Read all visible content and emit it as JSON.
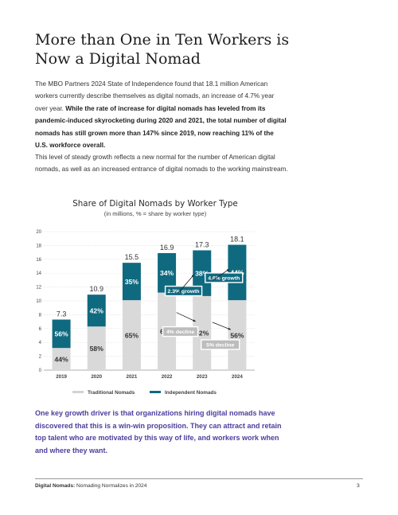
{
  "page": {
    "title_line1": "More than One in Ten Workers is",
    "title_line2": "Now a Digital Nomad",
    "p1_normal": "The MBO Partners 2024 State of Independence found that 18.1 million American workers currently describe themselves as digital nomads, an increase of 4.7% year over year. ",
    "p1_bold": "While the rate of increase for digital nomads has leveled from its pandemic-induced skyrocketing during 2020 and 2021, the total number of digital nomads has still grown more than 147% since 2019, now reaching 11% of the U.S. workforce overall.",
    "p2": "This level of steady growth reflects a new normal for the number of American digital nomads, as well as an increased entrance of digital nomads to the working mainstream.",
    "callout": "One key growth driver is that organizations hiring digital nomads have discovered that this is a win-win proposition. They can attract and retain top talent who are motivated by this way of life, and workers work when and where they want.",
    "footer_bold": "Digital Nomads:",
    "footer_rest": " Nomading Normalizes in 2024",
    "page_number": "3"
  },
  "chart_data": {
    "type": "bar",
    "stacked": true,
    "title": "Share of Digital Nomads by Worker Type",
    "subtitle": "(in millions, % = share by worker type)",
    "categories": [
      "2019",
      "2020",
      "2021",
      "2022",
      "2023",
      "2024"
    ],
    "totals": [
      "7.3",
      "10.9",
      "15.5",
      "16.9",
      "17.3",
      "18.1"
    ],
    "total_values": [
      7.3,
      10.9,
      15.5,
      16.9,
      17.3,
      18.1
    ],
    "series": [
      {
        "name": "Traditional Nomads",
        "color": "#d9d9d9",
        "share_labels": [
          "44%",
          "58%",
          "65%",
          "66%",
          "62%",
          "56%"
        ],
        "values": [
          3.2,
          6.3,
          10.1,
          11.2,
          10.7,
          10.1
        ]
      },
      {
        "name": "Independent Nomads",
        "color": "#0f6a80",
        "share_labels": [
          "56%",
          "42%",
          "35%",
          "34%",
          "38%",
          "44%"
        ],
        "values": [
          4.1,
          4.6,
          5.4,
          5.7,
          6.6,
          8.0
        ]
      }
    ],
    "ylim": [
      0,
      20
    ],
    "yticks": [
      "0",
      "2",
      "4",
      "6",
      "8",
      "10",
      "12",
      "14",
      "16",
      "18",
      "20"
    ],
    "annotations": [
      {
        "text": "2.3% growth",
        "style": "dark"
      },
      {
        "text": "4.6% growth",
        "style": "dark"
      },
      {
        "text": "4% decline",
        "style": "gray"
      },
      {
        "text": "5% decline",
        "style": "gray"
      }
    ],
    "legend_position": "bottom",
    "grid": true
  }
}
